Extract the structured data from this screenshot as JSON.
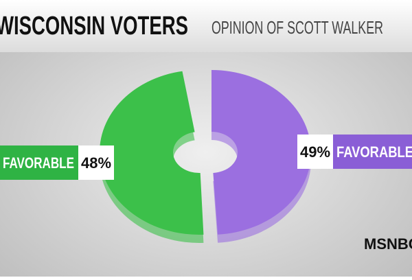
{
  "chart_data": {
    "type": "pie",
    "title": "WISCONSIN VOTERS",
    "subtitle": "OPINION OF SCOTT WALKER",
    "categories": [
      "FAVORABLE",
      "FAVORABLE"
    ],
    "values": [
      48,
      49
    ],
    "value_labels": [
      "48%",
      "49%"
    ],
    "colors": [
      "#3cc04a",
      "#9b6fe0"
    ],
    "logo": "MSNBC"
  }
}
